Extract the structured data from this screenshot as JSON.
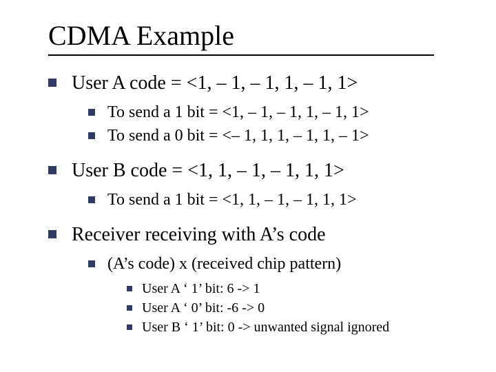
{
  "colors": {
    "bullet": "#2f3a66",
    "text": "#000000",
    "background": "#ffffff",
    "rule": "#000000"
  },
  "title": "CDMA Example",
  "level1": {
    "item0": "User A code = <1, – 1, – 1, 1, – 1, 1>",
    "item1": "User B code = <1, 1, – 1, – 1, 1, 1>",
    "item2": "Receiver receiving with A’s code"
  },
  "level2": {
    "a0": "To send a 1 bit = <1, – 1, – 1, 1, – 1, 1>",
    "a1": "To send a 0 bit = <– 1, 1, 1, – 1, 1, – 1>",
    "b0": "To send a 1 bit = <1, 1, – 1, – 1, 1, 1>",
    "c0": "(A’s code) x (received chip pattern)"
  },
  "level3": {
    "r0": "User A ‘ 1’ bit: 6 -> 1",
    "r1": "User A ‘ 0’ bit: -6 -> 0",
    "r2": "User B ‘ 1’ bit: 0 -> unwanted signal ignored"
  }
}
